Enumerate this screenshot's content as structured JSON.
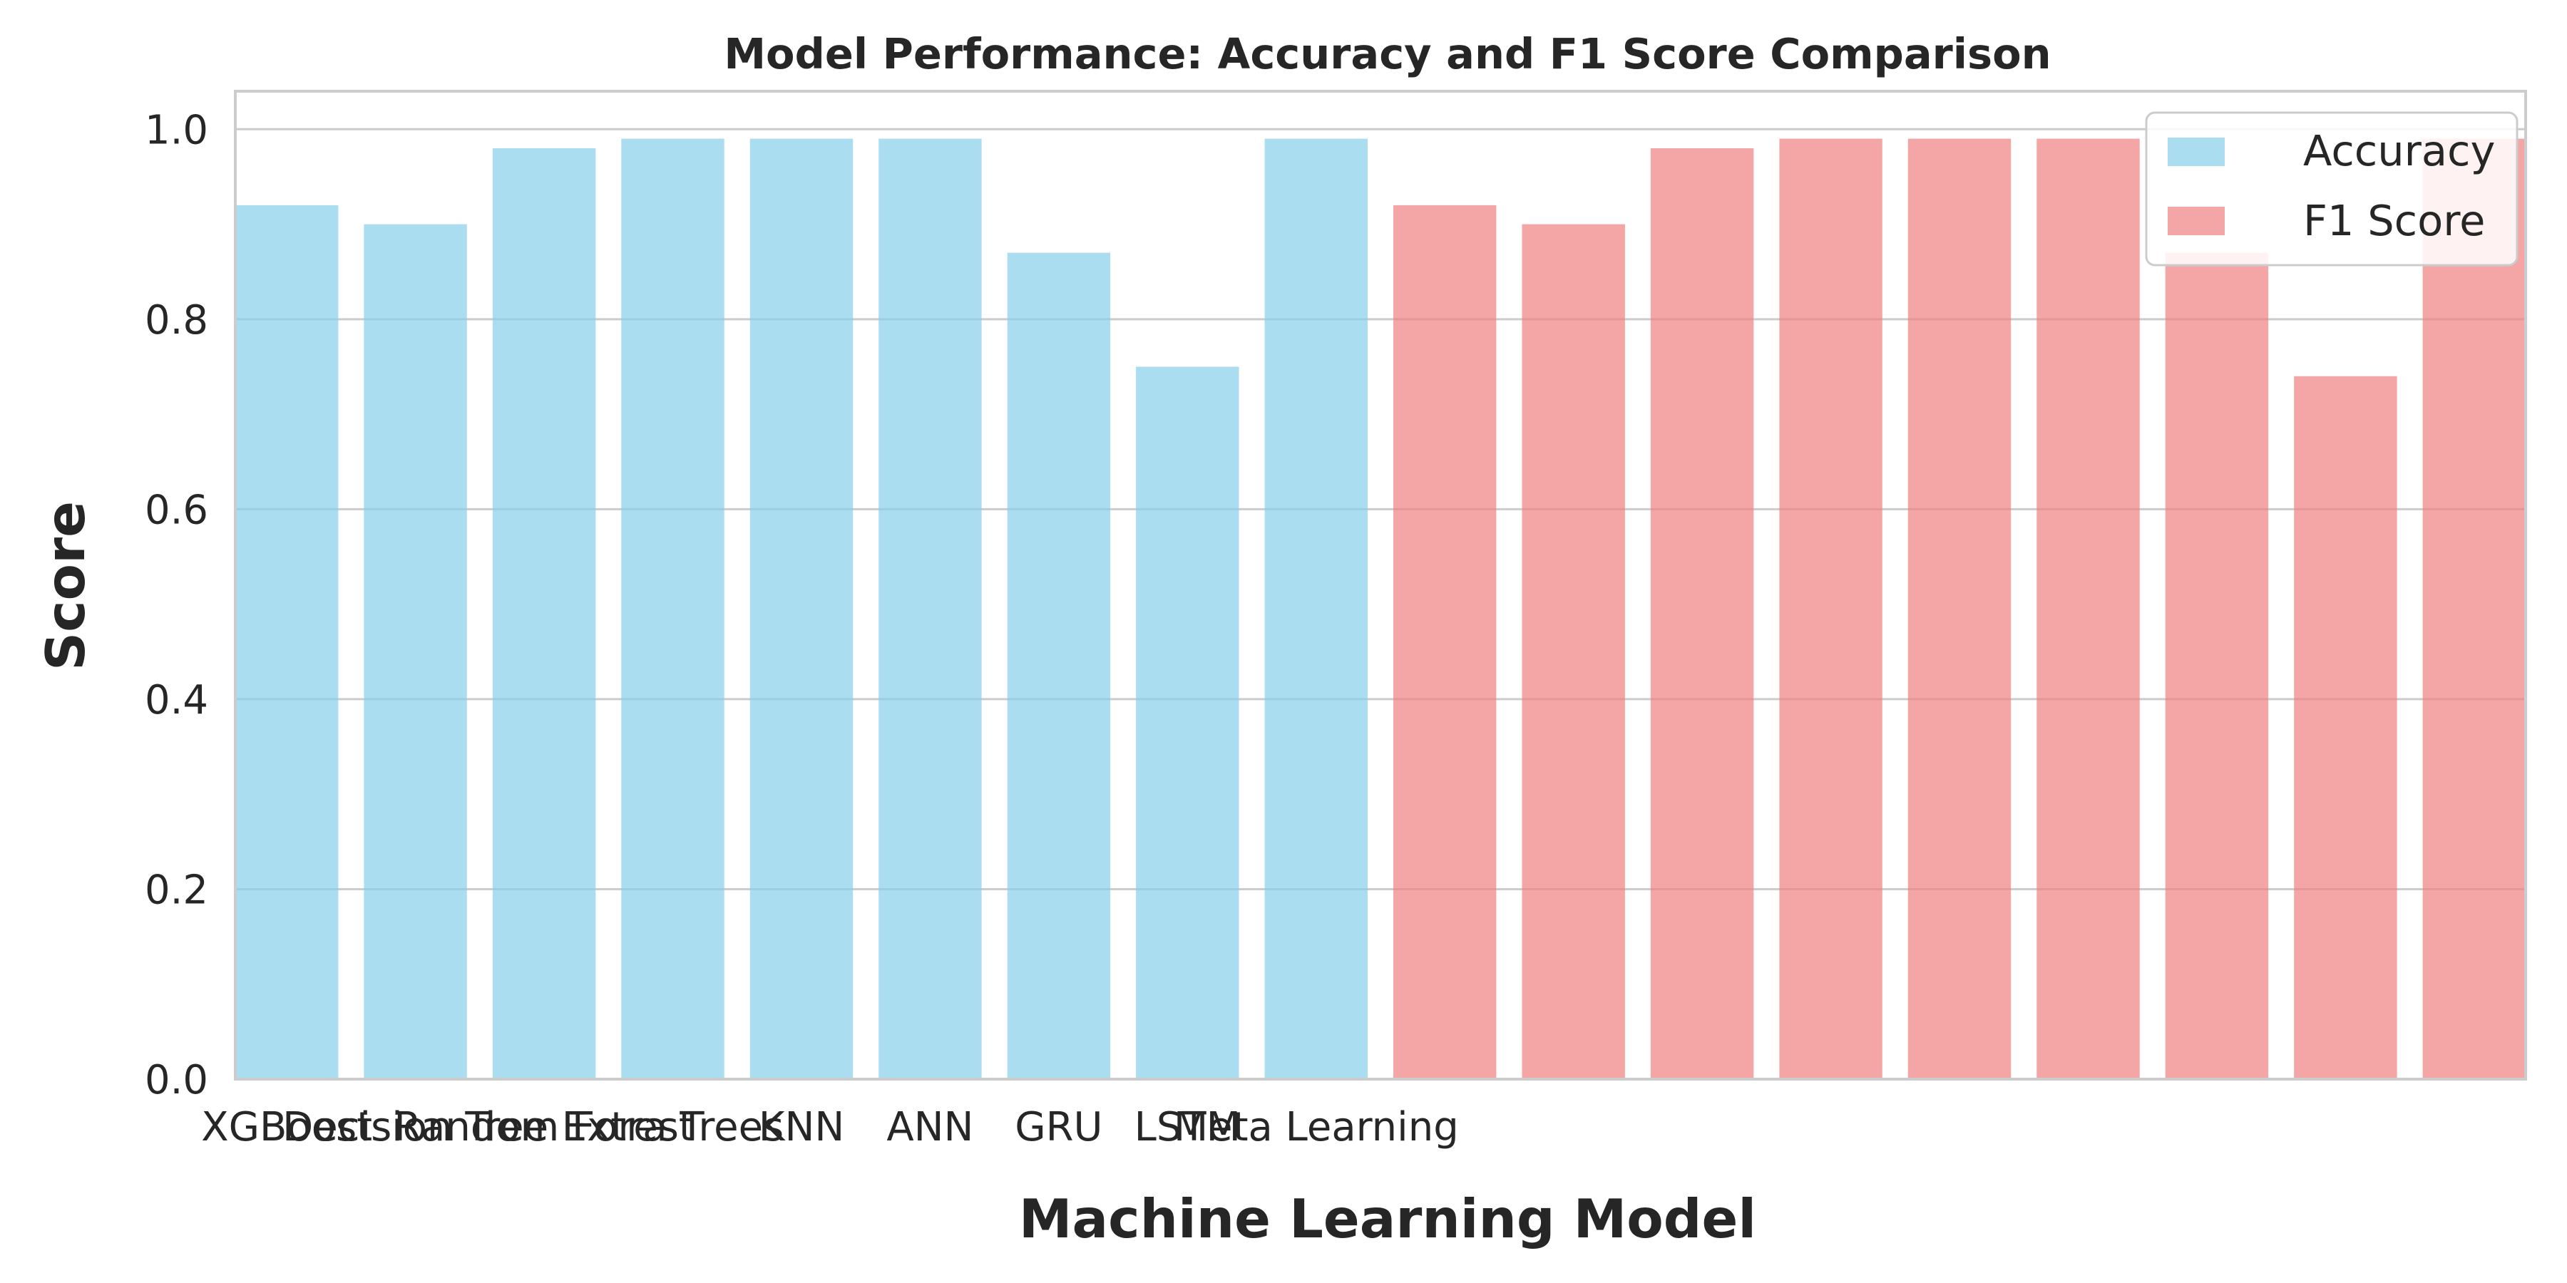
{
  "chart_data": {
    "type": "bar",
    "title": "Model Performance: Accuracy and F1 Score Comparison",
    "xlabel": "Machine Learning Model",
    "ylabel": "Score",
    "ylim": [
      0,
      1.04
    ],
    "yticks": [
      "0.0",
      "0.2",
      "0.4",
      "0.6",
      "0.8",
      "1.0"
    ],
    "categories": [
      "XGBoost",
      "Decision Tree",
      "Random Forest",
      "Extra Trees",
      "KNN",
      "ANN",
      "GRU",
      "LSTM",
      "Meta Learning"
    ],
    "grid": true,
    "legend_position": "top-right",
    "series": [
      {
        "name": "Accuracy",
        "color": "#87ceeb",
        "values": [
          0.92,
          0.9,
          0.98,
          0.99,
          0.99,
          0.99,
          0.87,
          0.75,
          0.99
        ]
      },
      {
        "name": "F1 Score",
        "color": "#f08080",
        "values": [
          0.92,
          0.9,
          0.98,
          0.99,
          0.99,
          0.99,
          0.87,
          0.74,
          0.99
        ]
      }
    ]
  }
}
